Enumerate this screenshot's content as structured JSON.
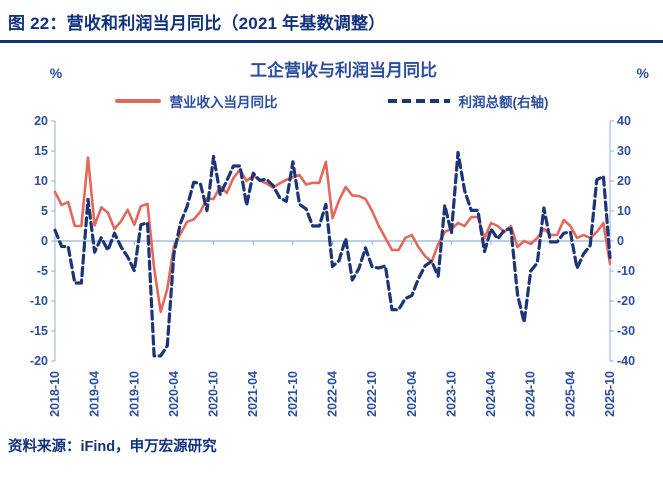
{
  "header": {
    "title": "图 22：营收和利润当月同比（2021 年基数调整）"
  },
  "chart": {
    "title": "工企营收与利润当月同比",
    "left_unit": "%",
    "right_unit": "%",
    "axis_color": "#8fb0dc",
    "text_color": "#2d4da1"
  },
  "source": {
    "label": "资料来源：iFind，申万宏源研究"
  },
  "chart_data": {
    "type": "line",
    "title": "工企营收与利润当月同比",
    "grid": false,
    "legend_position": "top",
    "left_axis": {
      "min": -20,
      "max": 20,
      "step": 5,
      "unit": "%"
    },
    "right_axis": {
      "min": -40,
      "max": 40,
      "step": 10,
      "unit": "%"
    },
    "x": [
      "2018-10",
      "2018-11",
      "2018-12",
      "2019-01",
      "2019-02",
      "2019-03",
      "2019-04",
      "2019-05",
      "2019-06",
      "2019-07",
      "2019-08",
      "2019-09",
      "2019-10",
      "2019-11",
      "2019-12",
      "2020-01",
      "2020-02",
      "2020-03",
      "2020-04",
      "2020-05",
      "2020-06",
      "2020-07",
      "2020-08",
      "2020-09",
      "2020-10",
      "2020-11",
      "2020-12",
      "2021-01",
      "2021-02",
      "2021-03",
      "2021-04",
      "2021-05",
      "2021-06",
      "2021-07",
      "2021-08",
      "2021-09",
      "2021-10",
      "2021-11",
      "2021-12",
      "2022-01",
      "2022-02",
      "2022-03",
      "2022-04",
      "2022-05",
      "2022-06",
      "2022-07",
      "2022-08",
      "2022-09",
      "2022-10",
      "2022-11",
      "2022-12",
      "2023-01",
      "2023-02",
      "2023-03",
      "2023-04",
      "2023-05",
      "2023-06",
      "2023-07",
      "2023-08",
      "2023-09",
      "2023-10",
      "2023-11",
      "2023-12",
      "2024-01",
      "2024-02",
      "2024-03",
      "2024-04",
      "2024-05",
      "2024-06",
      "2024-07",
      "2024-08",
      "2024-09",
      "2024-10",
      "2024-11",
      "2024-12",
      "2025-01",
      "2025-02",
      "2025-03",
      "2025-04",
      "2025-05",
      "2025-06",
      "2025-07",
      "2025-08",
      "2025-09",
      "2025-10"
    ],
    "x_tick_labels": [
      "2018-10",
      "2019-04",
      "2019-10",
      "2020-04",
      "2020-10",
      "2021-04",
      "2021-10",
      "2022-04",
      "2022-10",
      "2023-04",
      "2023-10",
      "2024-04",
      "2024-10",
      "2025-04",
      "2025-10"
    ],
    "series": [
      {
        "name": "营业收入当月同比",
        "axis": "left",
        "style": "solid",
        "color": "#e2685c",
        "values": [
          8.2,
          6.0,
          6.5,
          2.5,
          2.5,
          13.9,
          2.6,
          5.6,
          4.7,
          2.0,
          3.3,
          5.2,
          2.7,
          5.8,
          6.2,
          -4.5,
          -11.8,
          -8.0,
          -0.9,
          1.2,
          3.2,
          3.6,
          4.9,
          7.1,
          7.0,
          9.1,
          8.0,
          10.5,
          11.9,
          10.0,
          10.9,
          10.1,
          9.6,
          8.9,
          9.6,
          10.2,
          10.6,
          11.0,
          9.4,
          9.7,
          9.7,
          13.2,
          3.8,
          6.8,
          9.0,
          7.6,
          7.5,
          7.0,
          5.0,
          2.5,
          0.5,
          -1.5,
          -1.5,
          0.5,
          1.0,
          -1.0,
          -2.5,
          -3.5,
          -0.5,
          1.5,
          2.0,
          3.0,
          2.5,
          4.0,
          4.0,
          0.5,
          3.0,
          2.5,
          1.5,
          2.5,
          -1.0,
          0.0,
          -0.5,
          0.5,
          2.0,
          1.0,
          1.0,
          3.5,
          2.5,
          0.5,
          1.0,
          0.5,
          1.5,
          3.0,
          -3.8
        ]
      },
      {
        "name": "利润总额(右轴)",
        "axis": "right",
        "style": "dashed",
        "color": "#1d3576",
        "values": [
          3.6,
          -1.8,
          -1.9,
          -14.0,
          -14.0,
          13.9,
          -3.7,
          1.1,
          -3.1,
          2.6,
          -2.0,
          -5.3,
          -9.9,
          5.4,
          6.1,
          -38.3,
          -38.3,
          -34.9,
          -4.3,
          6.0,
          11.5,
          19.6,
          19.1,
          10.1,
          28.2,
          15.5,
          20.1,
          25.0,
          25.0,
          11.9,
          22.6,
          20.2,
          20.6,
          18.5,
          14.5,
          13.2,
          26.4,
          12.2,
          10.7,
          5.0,
          5.0,
          12.2,
          -8.5,
          -6.5,
          0.8,
          -13.0,
          -9.2,
          -2.3,
          -8.6,
          -9.0,
          -8.3,
          -22.9,
          -22.9,
          -19.2,
          -18.2,
          -12.6,
          -8.3,
          -6.7,
          -11.7,
          11.9,
          2.7,
          29.5,
          16.8,
          10.2,
          10.2,
          -3.5,
          4.0,
          0.7,
          3.6,
          4.1,
          -17.8,
          -27.1,
          -10.0,
          -7.3,
          11.0,
          -0.3,
          -0.3,
          2.6,
          3.0,
          -9.1,
          -4.3,
          -1.5,
          20.4,
          21.6,
          -5.5
        ]
      }
    ]
  }
}
